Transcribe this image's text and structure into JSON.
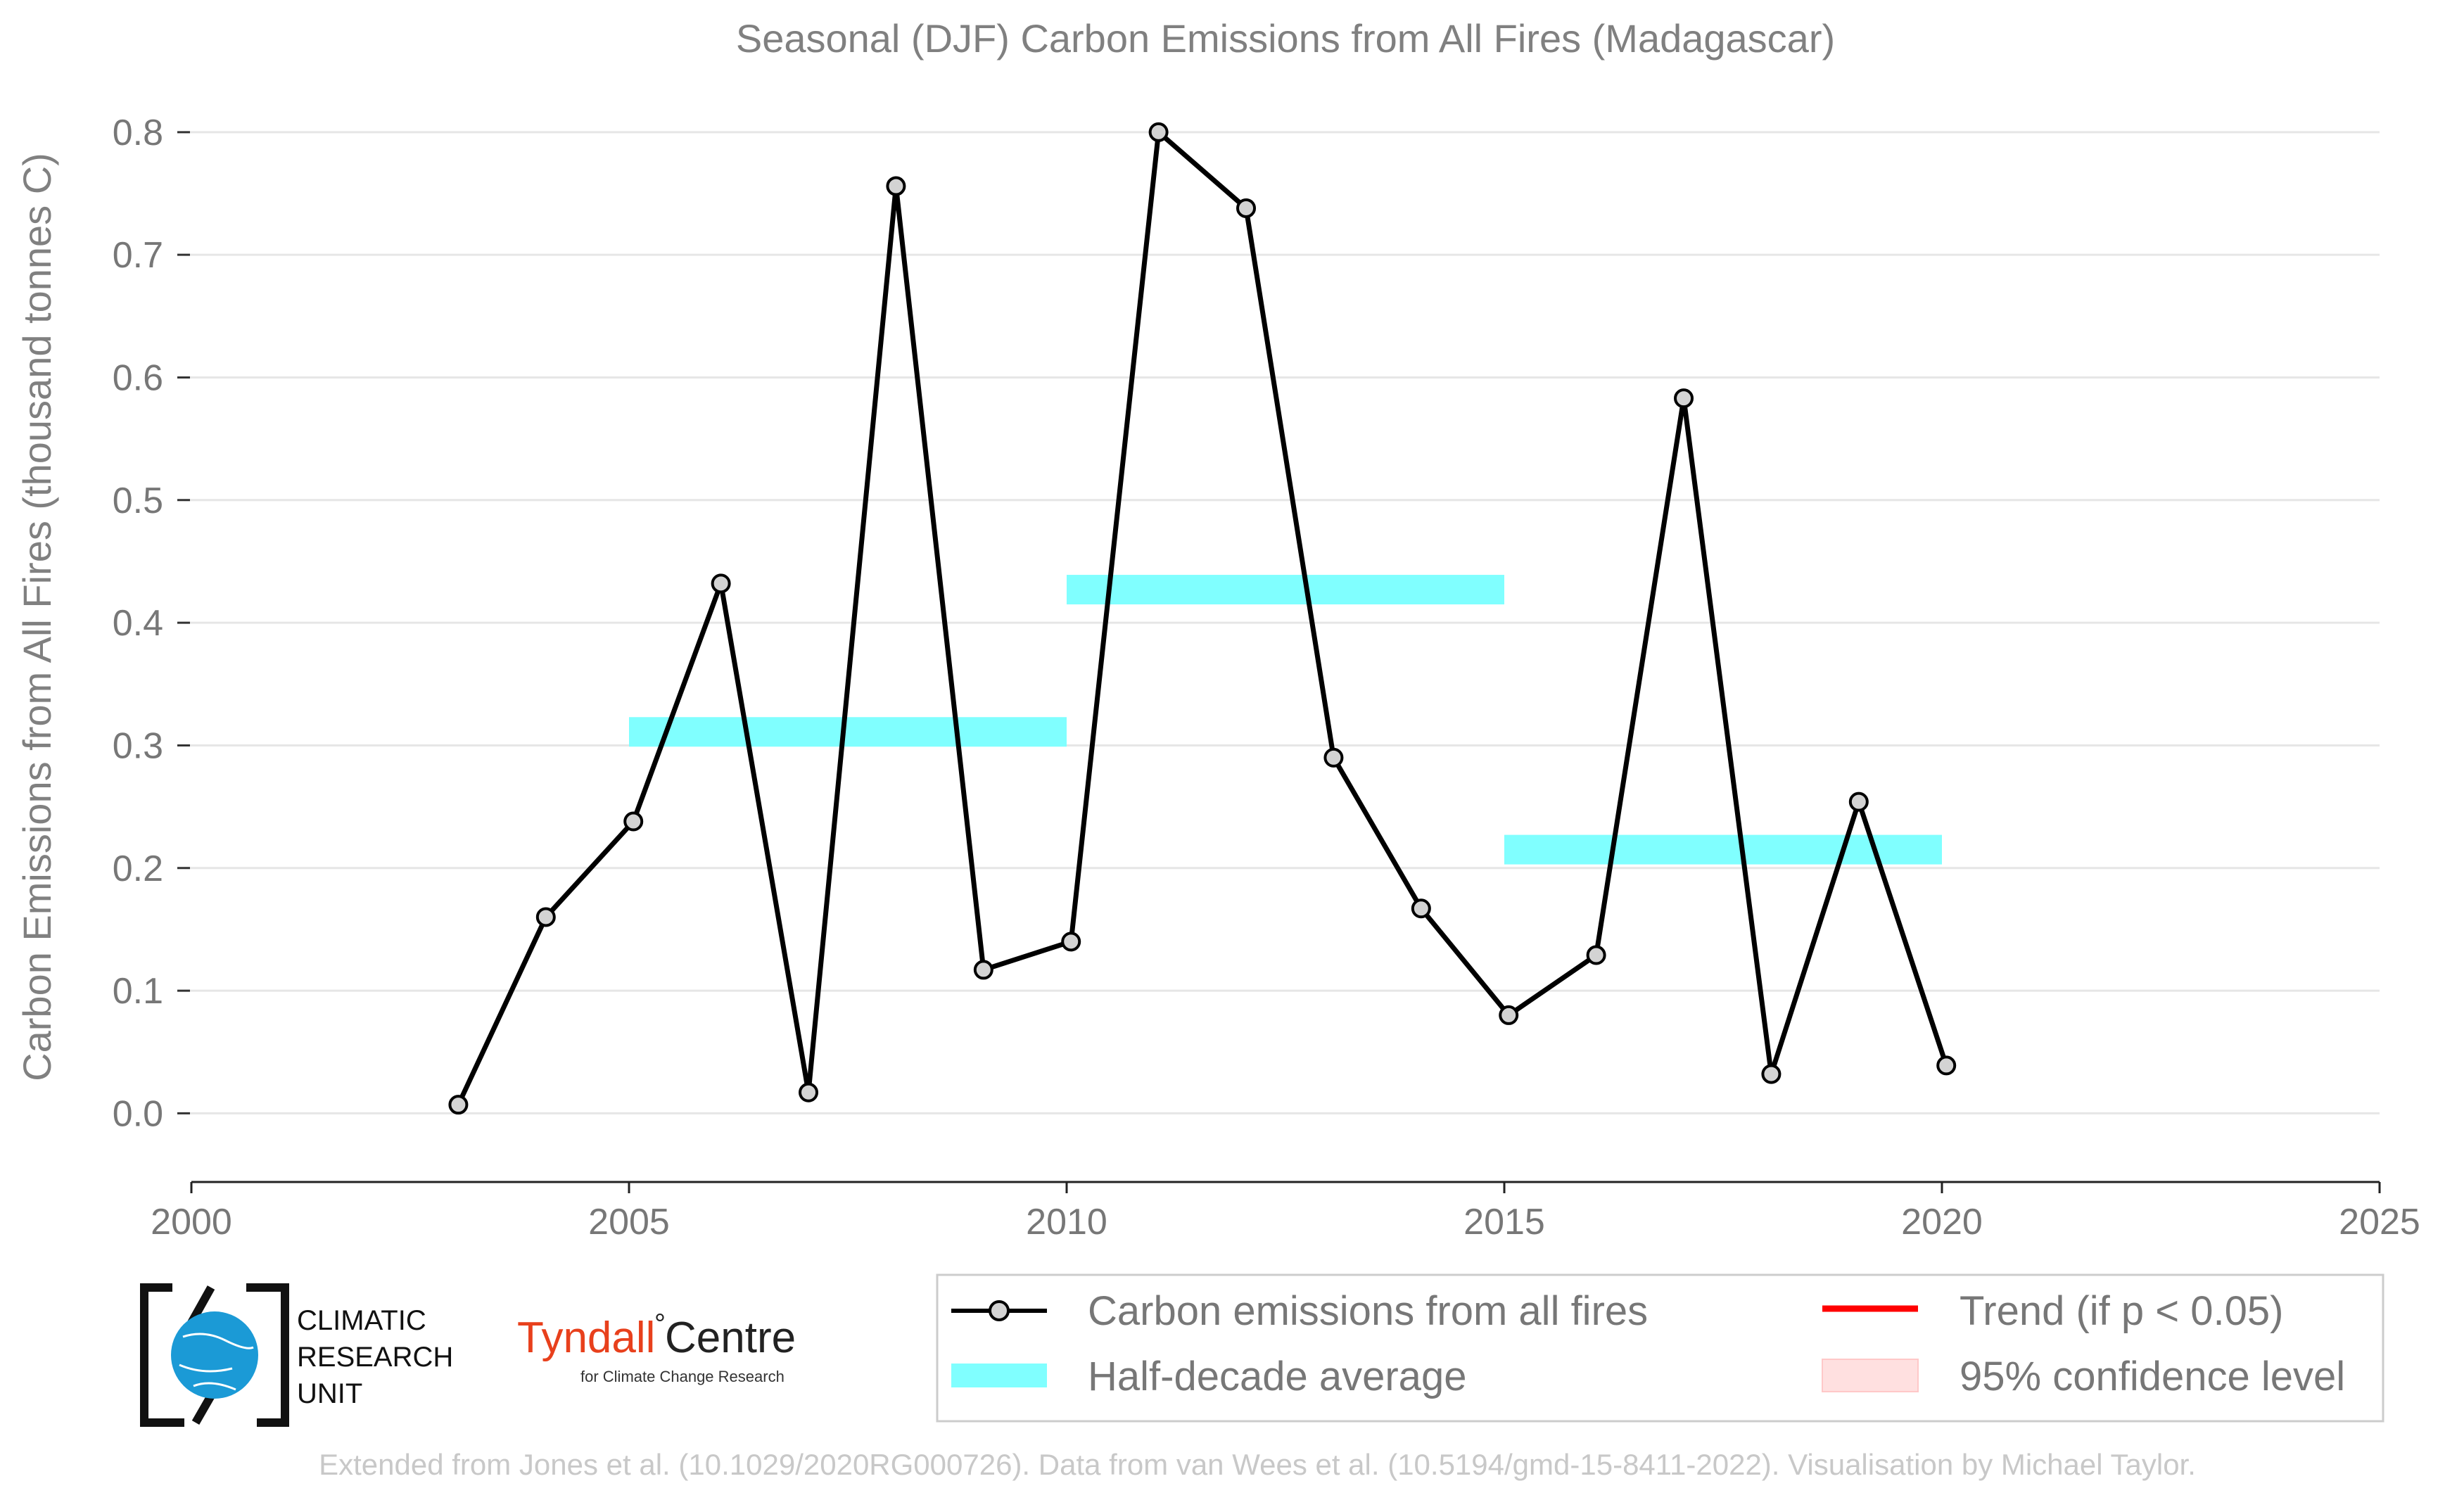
{
  "chart_data": {
    "type": "line",
    "title": "Seasonal (DJF) Carbon Emissions from All Fires (Madagascar)",
    "ylabel": "Carbon Emissions from All Fires (thousand tonnes C)",
    "xlabel": "",
    "xlim": [
      2000,
      2025
    ],
    "ylim": [
      -0.056,
      0.82
    ],
    "x_ticks": [
      2000,
      2005,
      2010,
      2015,
      2020,
      2025
    ],
    "y_ticks": [
      0.0,
      0.1,
      0.2,
      0.3,
      0.4,
      0.5,
      0.6,
      0.7,
      0.8
    ],
    "grid": "horizontal",
    "series": [
      {
        "name": "Carbon emissions from all fires",
        "color": "#000000",
        "marker_fill": "#d3d3d3",
        "x": [
          2003,
          2004,
          2005,
          2006,
          2007,
          2008,
          2009,
          2010,
          2011,
          2012,
          2013,
          2014,
          2015,
          2016,
          2017,
          2018,
          2019,
          2020
        ],
        "y": [
          0.007,
          0.16,
          0.238,
          0.432,
          0.017,
          0.756,
          0.117,
          0.14,
          0.8,
          0.738,
          0.29,
          0.167,
          0.08,
          0.129,
          0.583,
          0.032,
          0.254,
          0.039
        ]
      }
    ],
    "half_decade_averages": {
      "name": "Half-decade average",
      "color": "#80ffff",
      "segments": [
        {
          "x_start": 2005,
          "x_end": 2010,
          "y": 0.311
        },
        {
          "x_start": 2010,
          "x_end": 2015,
          "y": 0.427
        },
        {
          "x_start": 2015,
          "x_end": 2020,
          "y": 0.215
        }
      ]
    },
    "legend": {
      "placement": "bottom-right",
      "items": [
        {
          "label": "Carbon emissions from all fires",
          "kind": "line-marker",
          "color": "#000000"
        },
        {
          "label": "Trend (if p < 0.05)",
          "kind": "line",
          "color": "#ff0000"
        },
        {
          "label": "Half-decade average",
          "kind": "band",
          "color": "#80ffff"
        },
        {
          "label": "95% confidence level",
          "kind": "box",
          "color": "#ffe0e0"
        }
      ]
    }
  },
  "logos": {
    "cru_line1": "CLIMATIC",
    "cru_line2": "RESEARCH",
    "cru_line3": "UNIT",
    "tyndall_name": "Tyndall",
    "tyndall_degree": "°",
    "tyndall_centre": "Centre",
    "tyndall_sub": "for Climate Change Research",
    "tyndall_color": "#e8401c",
    "cru_globe_color": "#1b9ad6"
  },
  "footer": {
    "credit": "Extended from Jones et al. (10.1029/2020RG000726). Data from van Wees et al. (10.5194/gmd-15-8411-2022). Visualisation by Michael Taylor."
  }
}
